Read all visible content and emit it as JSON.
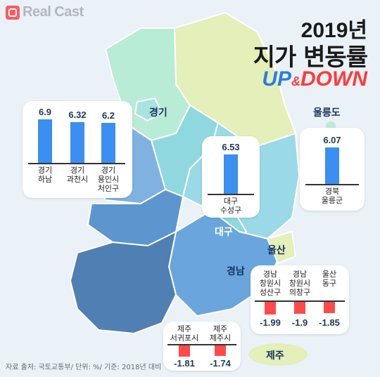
{
  "brand": "Real Cast",
  "title": {
    "year": "2019년",
    "main": "지가 변동률",
    "up": "UP",
    "amp": "&",
    "down": "DOWN"
  },
  "regions": {
    "gyeonggi": "경기",
    "ulleungdo": "울릉도",
    "daegu": "대구",
    "ulsan": "울산",
    "gyeongnam": "경남",
    "jeju": "제주"
  },
  "cards": {
    "gyeonggi": {
      "bars": [
        {
          "value": "6.9",
          "label": "경기\n하남"
        },
        {
          "value": "6.32",
          "label": "경기\n과천시"
        },
        {
          "value": "6.2",
          "label": "경기\n용인시\n처인구"
        }
      ]
    },
    "daegu": {
      "bars": [
        {
          "value": "6.53",
          "label": "대구\n수성구"
        }
      ]
    },
    "ulleung": {
      "bars": [
        {
          "value": "6.07",
          "label": "경북\n울릉군"
        }
      ]
    },
    "gyeongnam": {
      "bars": [
        {
          "value": "-1.99",
          "label": "경남\n창원시\n성산구"
        },
        {
          "value": "-1.9",
          "label": "경남\n창원시\n의창구"
        },
        {
          "value": "-1.85",
          "label": "울산\n동구"
        }
      ]
    },
    "jeju": {
      "bars": [
        {
          "value": "-1.81",
          "label": "제주\n서귀포시"
        },
        {
          "value": "-1.74",
          "label": "제주\n제주시"
        }
      ]
    }
  },
  "chart_data": [
    {
      "type": "bar",
      "categories": [
        "경기 하남",
        "경기 과천시",
        "경기 용인시 처인구"
      ],
      "values": [
        6.9,
        6.32,
        6.2
      ]
    },
    {
      "type": "bar",
      "categories": [
        "대구 수성구"
      ],
      "values": [
        6.53
      ]
    },
    {
      "type": "bar",
      "categories": [
        "경북 울릉군"
      ],
      "values": [
        6.07
      ]
    },
    {
      "type": "bar",
      "categories": [
        "경남 창원시 성산구",
        "경남 창원시 의창구",
        "울산 동구"
      ],
      "values": [
        -1.99,
        -1.9,
        -1.85
      ]
    },
    {
      "type": "bar",
      "categories": [
        "제주 서귀포시",
        "제주 제주시"
      ],
      "values": [
        -1.81,
        -1.74
      ]
    }
  ],
  "source": "자료 출처: 국토교통부/ 단위: %/ 기준: 2018년 대비",
  "colors": {
    "up_bar": "#3b8ff0",
    "down_bar": "#ff4a4a",
    "up_text": "#2a7de1",
    "down_text": "#ff3b3b"
  }
}
